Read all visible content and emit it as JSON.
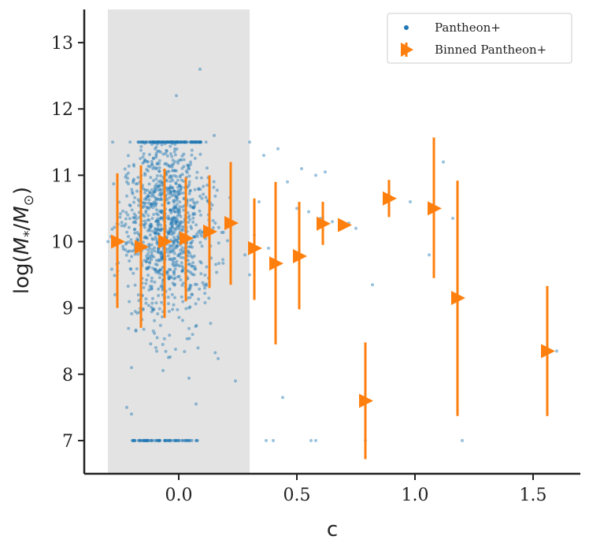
{
  "chart_data": {
    "type": "scatter",
    "xlabel": "c",
    "ylabel": "log(M*/M⊙)",
    "xlim": [
      -0.4,
      1.7
    ],
    "ylim": [
      6.5,
      13.5
    ],
    "xticks": [
      0.0,
      0.5,
      1.0,
      1.5
    ],
    "xtick_labels": [
      "0.0",
      "0.5",
      "1.0",
      "1.5"
    ],
    "yticks": [
      7,
      8,
      9,
      10,
      11,
      12,
      13
    ],
    "ytick_labels": [
      "7",
      "8",
      "9",
      "10",
      "11",
      "12",
      "13"
    ],
    "grid": false,
    "shaded_region": {
      "x0": -0.3,
      "x1": 0.3,
      "color": "#e3e3e3"
    },
    "legend": {
      "placement": "top-right",
      "entries": [
        {
          "label": "Pantheon+",
          "marker": "dot",
          "color": "#1f77b4"
        },
        {
          "label": "Binned Pantheon+",
          "marker": "right-triangle",
          "color": "#ff7f0e"
        }
      ]
    },
    "series": [
      {
        "name": "Pantheon+",
        "kind": "scatter",
        "color": "#1f77b4",
        "points": [
          [
            0.09,
            12.6
          ],
          [
            -0.01,
            12.2
          ],
          [
            0.42,
            11.4
          ],
          [
            0.36,
            11.3
          ],
          [
            0.52,
            11.1
          ],
          [
            0.62,
            11.05
          ],
          [
            1.12,
            11.2
          ],
          [
            0.58,
            11.0
          ],
          [
            0.46,
            10.9
          ],
          [
            0.5,
            10.5
          ],
          [
            0.55,
            10.45
          ],
          [
            0.6,
            10.35
          ],
          [
            0.65,
            10.3
          ],
          [
            0.72,
            10.28
          ],
          [
            0.75,
            10.2
          ],
          [
            0.82,
            9.35
          ],
          [
            0.98,
            10.6
          ],
          [
            1.08,
            10.5
          ],
          [
            1.06,
            9.8
          ],
          [
            1.16,
            10.35
          ],
          [
            1.18,
            9.15
          ],
          [
            0.8,
            7.6
          ],
          [
            0.79,
            7.0
          ],
          [
            1.2,
            7.0
          ],
          [
            1.6,
            8.35
          ],
          [
            0.44,
            7.65
          ],
          [
            0.4,
            7.0
          ],
          [
            0.37,
            7.0
          ],
          [
            0.56,
            7.0
          ],
          [
            0.58,
            7.0
          ],
          [
            0.32,
            10.1
          ],
          [
            0.3,
            11.5
          ],
          [
            0.38,
            9.9
          ],
          [
            0.28,
            9.8
          ],
          [
            0.3,
            9.5
          ],
          [
            0.34,
            10.6
          ],
          [
            0.24,
            7.9
          ],
          [
            -0.22,
            7.5
          ],
          [
            -0.2,
            8.1
          ],
          [
            -0.2,
            7.4
          ],
          [
            -0.25,
            10.0
          ],
          [
            -0.3,
            10.0
          ],
          [
            -0.28,
            11.5
          ],
          [
            -0.27,
            9.2
          ],
          [
            -0.22,
            10.9
          ],
          [
            0.15,
            11.6
          ],
          [
            -0.1,
            11.4
          ],
          [
            0.05,
            11.2
          ]
        ]
      },
      {
        "name": "Binned Pantheon+",
        "kind": "errorbar",
        "color": "#ff7f0e",
        "points": [
          {
            "x": -0.26,
            "y": 10.0,
            "ylo": 9.0,
            "yhi": 11.03
          },
          {
            "x": -0.16,
            "y": 9.92,
            "ylo": 8.7,
            "yhi": 11.15
          },
          {
            "x": -0.06,
            "y": 10.0,
            "ylo": 8.85,
            "yhi": 11.1
          },
          {
            "x": 0.03,
            "y": 10.05,
            "ylo": 9.1,
            "yhi": 10.97
          },
          {
            "x": 0.13,
            "y": 10.15,
            "ylo": 9.3,
            "yhi": 11.0
          },
          {
            "x": 0.22,
            "y": 10.28,
            "ylo": 9.35,
            "yhi": 11.2
          },
          {
            "x": 0.32,
            "y": 9.9,
            "ylo": 9.12,
            "yhi": 10.65
          },
          {
            "x": 0.41,
            "y": 9.67,
            "ylo": 8.45,
            "yhi": 10.9
          },
          {
            "x": 0.51,
            "y": 9.78,
            "ylo": 8.98,
            "yhi": 10.6
          },
          {
            "x": 0.61,
            "y": 10.27,
            "ylo": 9.95,
            "yhi": 10.6
          },
          {
            "x": 0.7,
            "y": 10.25,
            "ylo": 10.25,
            "yhi": 10.25
          },
          {
            "x": 0.79,
            "y": 7.6,
            "ylo": 6.72,
            "yhi": 8.48
          },
          {
            "x": 0.89,
            "y": 10.65,
            "ylo": 10.37,
            "yhi": 10.93
          },
          {
            "x": 1.08,
            "y": 10.5,
            "ylo": 9.45,
            "yhi": 11.57
          },
          {
            "x": 1.18,
            "y": 9.15,
            "ylo": 7.37,
            "yhi": 10.92
          },
          {
            "x": 1.56,
            "y": 8.35,
            "ylo": 7.37,
            "yhi": 9.33
          }
        ]
      }
    ]
  }
}
